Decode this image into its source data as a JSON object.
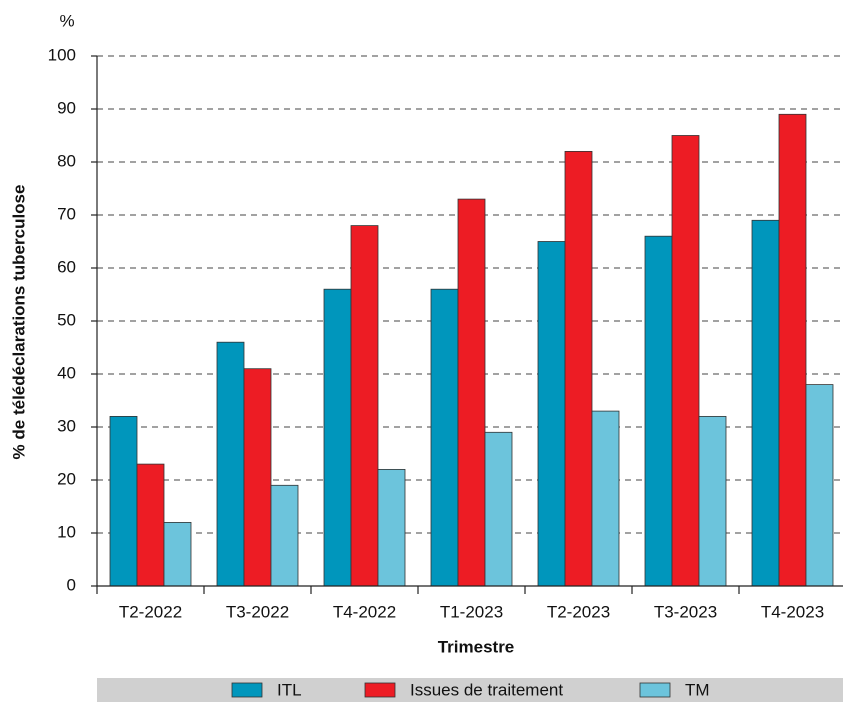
{
  "chart_data": {
    "type": "bar",
    "y_unit": "%",
    "y_label": "% de télédéclarations tuberculose",
    "x_label": "Trimestre",
    "categories": [
      "T2-2022",
      "T3-2022",
      "T4-2022",
      "T1-2023",
      "T2-2023",
      "T3-2023",
      "T4-2023"
    ],
    "series": [
      {
        "name": "ITL",
        "color": "#0096bc",
        "values": [
          32,
          46,
          56,
          56,
          65,
          66,
          69
        ]
      },
      {
        "name": "Issues de traitement",
        "color": "#ed1c24",
        "values": [
          23,
          41,
          68,
          73,
          82,
          85,
          89
        ]
      },
      {
        "name": "TM",
        "color": "#6cc4dc",
        "values": [
          12,
          19,
          22,
          29,
          33,
          32,
          38
        ]
      }
    ],
    "ylim": [
      0,
      100
    ],
    "yticks": [
      0,
      10,
      20,
      30,
      40,
      50,
      60,
      70,
      80,
      90,
      100
    ],
    "grid": true,
    "legend": "bottom"
  }
}
